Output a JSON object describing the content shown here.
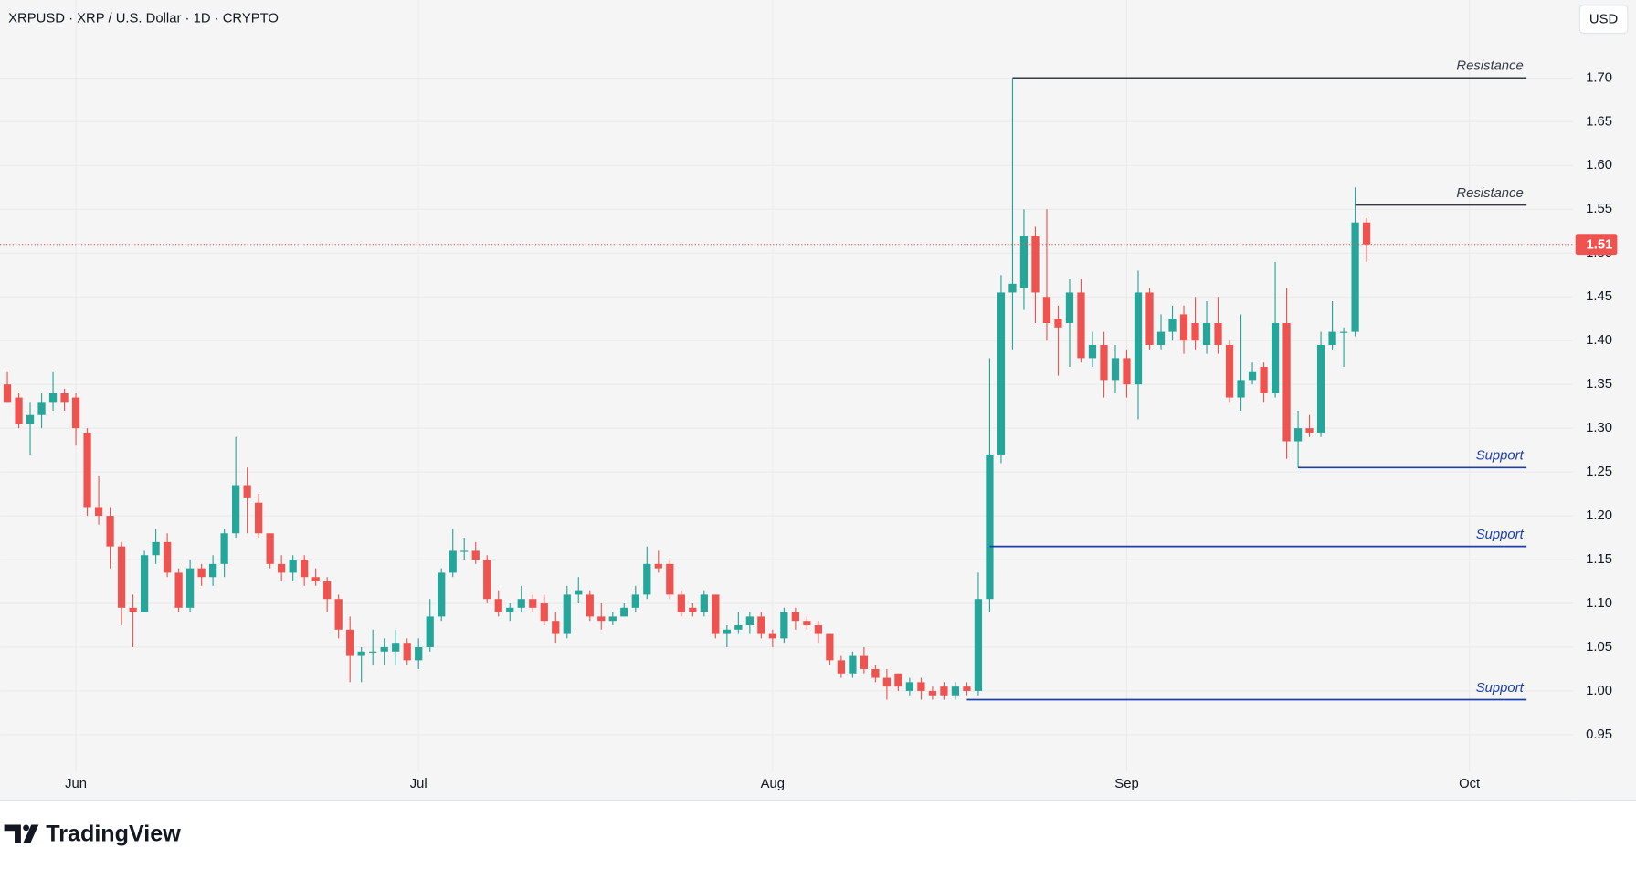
{
  "chart_data": {
    "type": "candlestick",
    "title": "XRPUSD · XRP / U.S. Dollar · 1D · CRYPTO",
    "currency_button": "USD",
    "brand": "TradingView",
    "up_color": "#26a69a",
    "down_color": "#ef5350",
    "open": [
      1.35,
      1.335,
      1.305,
      1.315,
      1.33,
      1.34,
      1.335,
      1.295,
      1.21,
      1.2,
      1.165,
      1.095,
      1.09,
      1.155,
      1.17,
      1.135,
      1.095,
      1.14,
      1.13,
      1.145,
      1.18,
      1.235,
      1.215,
      1.18,
      1.145,
      1.135,
      1.15,
      1.13,
      1.125,
      1.105,
      1.07,
      1.04,
      1.045,
      1.045,
      1.045,
      1.055,
      1.035,
      1.05,
      1.085,
      1.135,
      1.16,
      1.16,
      1.15,
      1.105,
      1.09,
      1.095,
      1.105,
      1.1,
      1.08,
      1.065,
      1.11,
      1.11,
      1.085,
      1.08,
      1.085,
      1.095,
      1.11,
      1.145,
      1.145,
      1.11,
      1.095,
      1.09,
      1.11,
      1.065,
      1.07,
      1.075,
      1.085,
      1.065,
      1.06,
      1.09,
      1.08,
      1.075,
      1.065,
      1.035,
      1.02,
      1.04,
      1.025,
      1.015,
      1.02,
      1.0,
      1.01,
      1.0,
      1.005,
      0.995,
      1.005,
      1.0,
      1.105,
      1.27,
      1.455,
      1.46,
      1.52,
      1.45,
      1.425,
      1.42,
      1.455,
      1.38,
      1.395,
      1.355,
      1.38,
      1.35,
      1.455,
      1.395,
      1.41,
      1.43,
      1.42,
      1.395,
      1.42,
      1.395,
      1.335,
      1.355,
      1.37,
      1.34,
      1.42,
      1.285,
      1.3,
      1.295,
      1.395,
      1.41,
      1.41,
      1.535
    ],
    "high": [
      1.365,
      1.34,
      1.33,
      1.34,
      1.365,
      1.345,
      1.34,
      1.3,
      1.245,
      1.21,
      1.17,
      1.11,
      1.16,
      1.185,
      1.18,
      1.14,
      1.15,
      1.145,
      1.155,
      1.185,
      1.29,
      1.255,
      1.225,
      1.18,
      1.155,
      1.155,
      1.155,
      1.14,
      1.13,
      1.11,
      1.085,
      1.05,
      1.07,
      1.06,
      1.07,
      1.06,
      1.06,
      1.105,
      1.14,
      1.185,
      1.175,
      1.17,
      1.155,
      1.115,
      1.1,
      1.12,
      1.11,
      1.11,
      1.09,
      1.12,
      1.13,
      1.115,
      1.1,
      1.09,
      1.1,
      1.12,
      1.165,
      1.16,
      1.15,
      1.115,
      1.1,
      1.115,
      1.11,
      1.075,
      1.09,
      1.09,
      1.09,
      1.07,
      1.095,
      1.095,
      1.085,
      1.08,
      1.065,
      1.04,
      1.045,
      1.05,
      1.03,
      1.025,
      1.02,
      1.015,
      1.015,
      1.005,
      1.01,
      1.01,
      1.01,
      1.135,
      1.38,
      1.475,
      1.7,
      1.55,
      1.53,
      1.55,
      1.44,
      1.47,
      1.47,
      1.41,
      1.41,
      1.395,
      1.39,
      1.48,
      1.46,
      1.43,
      1.44,
      1.44,
      1.45,
      1.445,
      1.45,
      1.4,
      1.43,
      1.375,
      1.375,
      1.49,
      1.46,
      1.32,
      1.315,
      1.41,
      1.445,
      1.415,
      1.575,
      1.54
    ],
    "low": [
      1.33,
      1.3,
      1.27,
      1.3,
      1.32,
      1.32,
      1.28,
      1.2,
      1.19,
      1.14,
      1.075,
      1.05,
      1.09,
      1.145,
      1.13,
      1.09,
      1.09,
      1.12,
      1.12,
      1.13,
      1.175,
      1.18,
      1.175,
      1.14,
      1.125,
      1.125,
      1.12,
      1.12,
      1.09,
      1.06,
      1.01,
      1.01,
      1.03,
      1.03,
      1.03,
      1.03,
      1.025,
      1.045,
      1.08,
      1.13,
      1.15,
      1.145,
      1.1,
      1.085,
      1.08,
      1.09,
      1.09,
      1.075,
      1.055,
      1.06,
      1.1,
      1.08,
      1.07,
      1.075,
      1.085,
      1.09,
      1.105,
      1.135,
      1.105,
      1.085,
      1.085,
      1.085,
      1.06,
      1.05,
      1.065,
      1.065,
      1.06,
      1.05,
      1.055,
      1.07,
      1.07,
      1.055,
      1.03,
      1.015,
      1.015,
      1.02,
      1.01,
      0.99,
      1.0,
      0.995,
      0.99,
      0.99,
      0.99,
      0.99,
      0.995,
      0.995,
      1.09,
      1.26,
      1.39,
      1.435,
      1.42,
      1.4,
      1.36,
      1.37,
      1.375,
      1.37,
      1.335,
      1.34,
      1.335,
      1.31,
      1.39,
      1.39,
      1.4,
      1.385,
      1.39,
      1.385,
      1.385,
      1.33,
      1.32,
      1.35,
      1.33,
      1.335,
      1.265,
      1.255,
      1.29,
      1.29,
      1.39,
      1.37,
      1.405,
      1.49
    ],
    "close": [
      1.33,
      1.305,
      1.315,
      1.33,
      1.34,
      1.33,
      1.3,
      1.21,
      1.2,
      1.165,
      1.095,
      1.09,
      1.155,
      1.17,
      1.135,
      1.095,
      1.14,
      1.13,
      1.145,
      1.18,
      1.235,
      1.22,
      1.18,
      1.145,
      1.135,
      1.15,
      1.13,
      1.125,
      1.105,
      1.07,
      1.04,
      1.045,
      1.045,
      1.05,
      1.055,
      1.035,
      1.05,
      1.085,
      1.135,
      1.16,
      1.16,
      1.15,
      1.105,
      1.09,
      1.095,
      1.105,
      1.095,
      1.08,
      1.065,
      1.11,
      1.115,
      1.085,
      1.08,
      1.085,
      1.095,
      1.11,
      1.145,
      1.14,
      1.11,
      1.09,
      1.09,
      1.11,
      1.065,
      1.07,
      1.075,
      1.085,
      1.065,
      1.06,
      1.09,
      1.08,
      1.075,
      1.065,
      1.035,
      1.02,
      1.04,
      1.025,
      1.015,
      1.005,
      1.005,
      1.01,
      1.0,
      0.995,
      0.995,
      1.005,
      1.0,
      1.105,
      1.27,
      1.455,
      1.465,
      1.52,
      1.455,
      1.42,
      1.415,
      1.455,
      1.38,
      1.395,
      1.355,
      1.38,
      1.35,
      1.455,
      1.395,
      1.41,
      1.425,
      1.4,
      1.4,
      1.42,
      1.395,
      1.335,
      1.355,
      1.365,
      1.34,
      1.42,
      1.285,
      1.3,
      1.295,
      1.395,
      1.41,
      1.41,
      1.535,
      1.51
    ],
    "xlim": [
      -0.64,
      137.1
    ],
    "xticks": [
      {
        "value": 6,
        "label": "Jun"
      },
      {
        "value": 36,
        "label": "Jul"
      },
      {
        "value": 67,
        "label": "Aug"
      },
      {
        "value": 98,
        "label": "Sep"
      },
      {
        "value": 128,
        "label": "Oct"
      }
    ],
    "ylim": [
      0.908,
      1.789
    ],
    "yticks": [
      0.95,
      {
        "value": 1.0,
        "label": "1.00"
      },
      1.05,
      {
        "value": 1.1,
        "label": "1.10"
      },
      1.15,
      {
        "value": 1.2,
        "label": "1.20"
      },
      1.25,
      {
        "value": 1.3,
        "label": "1.30"
      },
      1.35,
      {
        "value": 1.4,
        "label": "1.40"
      },
      1.45,
      {
        "value": 1.5,
        "label": "1.50"
      },
      1.55,
      {
        "value": 1.6,
        "label": "1.60"
      },
      1.65,
      {
        "value": 1.7,
        "label": "1.70"
      }
    ],
    "grid": true,
    "last_price": {
      "value": 1.51,
      "color": "#ef5350"
    },
    "annotations": [
      {
        "text": "Resistance",
        "value": 1.7,
        "start": 88,
        "end": 133,
        "color": "#363a45"
      },
      {
        "text": "Resistance",
        "value": 1.555,
        "start": 118,
        "end": 133,
        "color": "#363a45"
      },
      {
        "text": "Support",
        "value": 1.255,
        "start": 113,
        "end": 133,
        "color": "#1e3fa8"
      },
      {
        "text": "Support",
        "value": 1.165,
        "start": 86,
        "end": 133,
        "color": "#1e3fa8"
      },
      {
        "text": "Support",
        "value": 0.99,
        "start": 84,
        "end": 133,
        "color": "#1e3fa8"
      }
    ]
  }
}
